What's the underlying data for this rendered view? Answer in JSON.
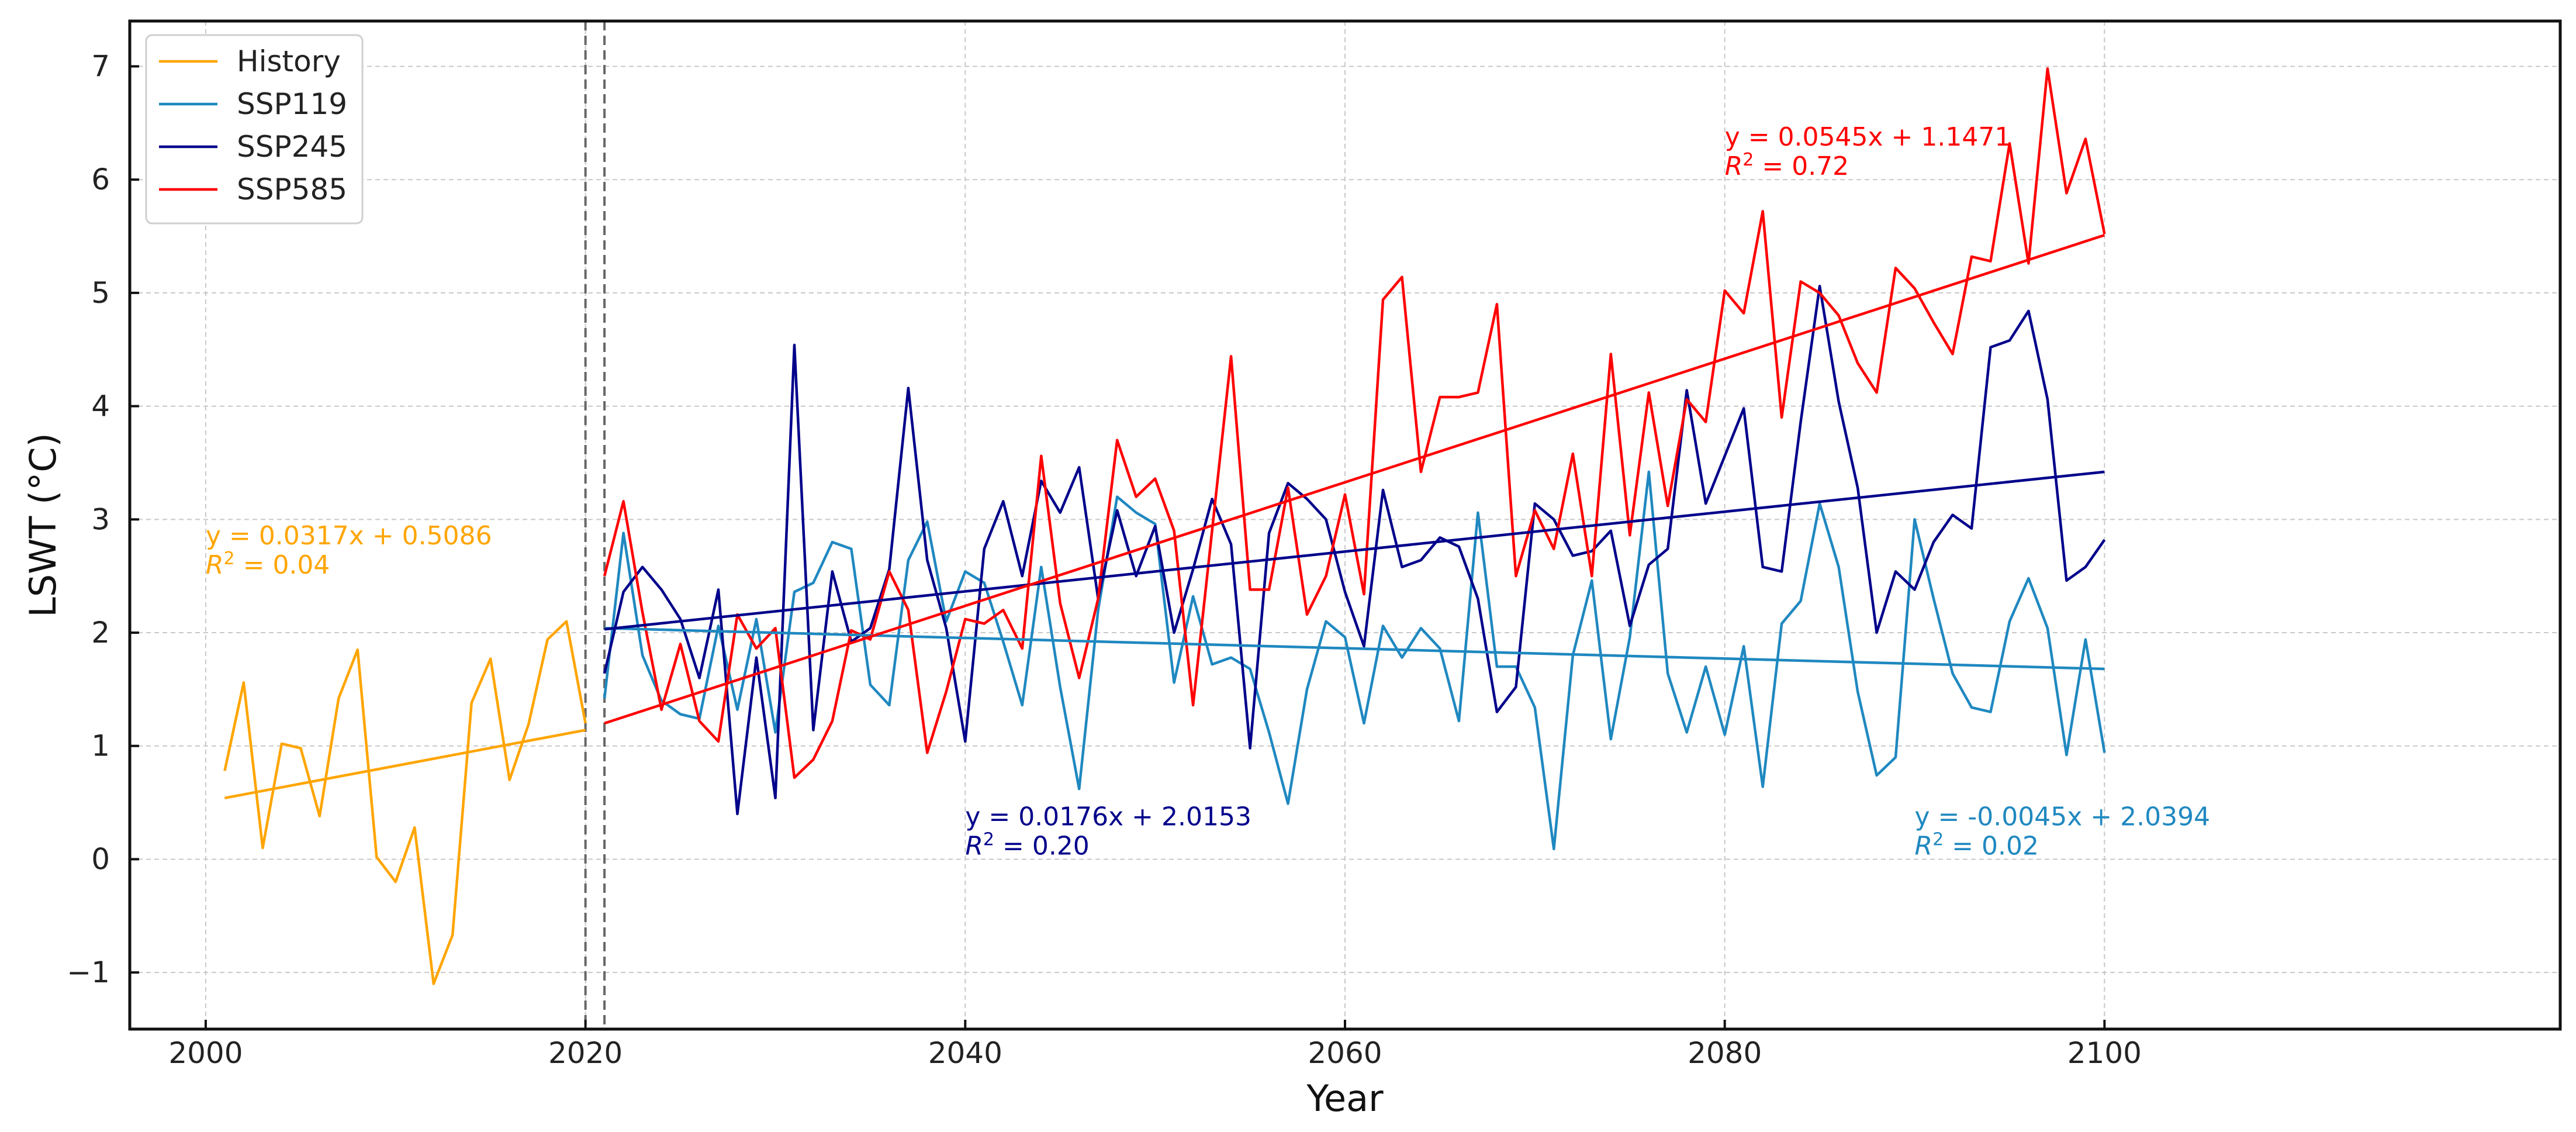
{
  "chart_data": {
    "type": "line",
    "xlabel": "Year",
    "ylabel": "LSWT (°C)",
    "xlim": [
      1996,
      2124
    ],
    "ylim": [
      -1.5,
      7.4
    ],
    "xticks": [
      2000,
      2020,
      2040,
      2060,
      2080,
      2100
    ],
    "xtick_labels": [
      "2000",
      "2020",
      "2040",
      "2060",
      "2080",
      "2100"
    ],
    "yticks": [
      -1,
      0,
      1,
      2,
      3,
      4,
      5,
      6,
      7
    ],
    "ytick_labels": [
      "−1",
      "0",
      "1",
      "2",
      "3",
      "4",
      "5",
      "6",
      "7"
    ],
    "grid": true,
    "legend_position": "top-left",
    "vlines": [
      2020,
      2021
    ],
    "series": [
      {
        "name": "History",
        "color": "#FFA500",
        "x": [
          2001,
          2002,
          2003,
          2004,
          2005,
          2006,
          2007,
          2008,
          2009,
          2010,
          2011,
          2012,
          2013,
          2014,
          2015,
          2016,
          2017,
          2018,
          2019,
          2020
        ],
        "values": [
          0.78,
          1.56,
          0.1,
          1.02,
          0.98,
          0.38,
          1.42,
          1.85,
          0.02,
          -0.2,
          0.28,
          -1.1,
          -0.67,
          1.38,
          1.77,
          0.7,
          1.19,
          1.94,
          2.1,
          1.2
        ],
        "trend": {
          "label": "y = 0.0317x + 0.5086",
          "r2": "= 0.04",
          "x0": 2001,
          "y0": 0.54,
          "x1": 2020,
          "y1": 1.14
        }
      },
      {
        "name": "SSP119",
        "color": "#1F88C0",
        "x": [
          2021,
          2022,
          2023,
          2024,
          2025,
          2026,
          2027,
          2028,
          2029,
          2030,
          2031,
          2032,
          2033,
          2034,
          2035,
          2036,
          2037,
          2038,
          2039,
          2040,
          2041,
          2042,
          2043,
          2044,
          2045,
          2046,
          2047,
          2048,
          2049,
          2050,
          2051,
          2052,
          2053,
          2054,
          2055,
          2056,
          2057,
          2058,
          2059,
          2060,
          2061,
          2062,
          2063,
          2064,
          2065,
          2066,
          2067,
          2068,
          2069,
          2070,
          2071,
          2072,
          2073,
          2074,
          2075,
          2076,
          2077,
          2078,
          2079,
          2080,
          2081,
          2082,
          2083,
          2084,
          2085,
          2086,
          2087,
          2088,
          2089,
          2090,
          2091,
          2092,
          2093,
          2094,
          2095,
          2096,
          2097,
          2098,
          2099,
          2100
        ],
        "values": [
          1.42,
          2.88,
          1.8,
          1.4,
          1.28,
          1.24,
          2.06,
          1.32,
          2.12,
          1.12,
          2.36,
          2.44,
          2.8,
          2.74,
          1.54,
          1.36,
          2.64,
          2.98,
          2.1,
          2.54,
          2.44,
          1.92,
          1.36,
          2.58,
          1.52,
          0.62,
          2.2,
          3.2,
          3.06,
          2.96,
          1.56,
          2.32,
          1.72,
          1.78,
          1.68,
          1.12,
          0.49,
          1.5,
          2.1,
          1.96,
          1.2,
          2.06,
          1.78,
          2.04,
          1.86,
          1.22,
          3.06,
          1.7,
          1.7,
          1.34,
          0.09,
          1.8,
          2.46,
          1.06,
          1.96,
          3.42,
          1.64,
          1.12,
          1.7,
          1.1,
          1.88,
          0.64,
          2.08,
          2.28,
          3.14,
          2.58,
          1.48,
          0.74,
          0.9,
          3.0,
          2.3,
          1.64,
          1.34,
          1.3,
          2.1,
          2.48,
          2.04,
          0.92,
          1.94,
          0.94
        ],
        "trend": {
          "label": "y = -0.0045x + 2.0394",
          "r2": "= 0.02",
          "x0": 2021,
          "y0": 2.04,
          "x1": 2100,
          "y1": 1.68
        }
      },
      {
        "name": "SSP245",
        "color": "#00008B",
        "x": [
          2021,
          2022,
          2023,
          2024,
          2025,
          2026,
          2027,
          2028,
          2029,
          2030,
          2031,
          2032,
          2033,
          2034,
          2035,
          2036,
          2037,
          2038,
          2039,
          2040,
          2041,
          2042,
          2043,
          2044,
          2045,
          2046,
          2047,
          2048,
          2049,
          2050,
          2051,
          2052,
          2053,
          2054,
          2055,
          2056,
          2057,
          2058,
          2059,
          2060,
          2061,
          2062,
          2063,
          2064,
          2065,
          2066,
          2067,
          2068,
          2069,
          2070,
          2071,
          2072,
          2073,
          2074,
          2075,
          2076,
          2077,
          2078,
          2079,
          2080,
          2081,
          2082,
          2083,
          2084,
          2085,
          2086,
          2087,
          2088,
          2089,
          2090,
          2091,
          2092,
          2093,
          2094,
          2095,
          2096,
          2097,
          2098,
          2099,
          2100
        ],
        "values": [
          1.64,
          2.36,
          2.58,
          2.38,
          2.12,
          1.6,
          2.38,
          0.4,
          1.78,
          0.54,
          4.54,
          1.14,
          2.54,
          1.92,
          2.04,
          2.56,
          4.16,
          2.64,
          2.04,
          1.04,
          2.74,
          3.16,
          2.5,
          3.34,
          3.06,
          3.46,
          2.3,
          3.08,
          2.5,
          2.94,
          2.0,
          2.56,
          3.18,
          2.78,
          0.98,
          2.88,
          3.32,
          3.18,
          3.0,
          2.36,
          1.88,
          3.26,
          2.58,
          2.64,
          2.84,
          2.76,
          2.3,
          1.3,
          1.52,
          3.14,
          3.0,
          2.68,
          2.72,
          2.9,
          2.06,
          2.6,
          2.74,
          4.14,
          3.14,
          3.56,
          3.98,
          2.58,
          2.54,
          3.86,
          5.06,
          4.04,
          3.28,
          2.0,
          2.54,
          2.38,
          2.8,
          3.04,
          2.92,
          4.52,
          4.58,
          4.84,
          4.06,
          2.46,
          2.58,
          2.82
        ],
        "trend": {
          "label": "y = 0.0176x + 2.0153",
          "r2": "= 0.20",
          "x0": 2021,
          "y0": 2.03,
          "x1": 2100,
          "y1": 3.42
        }
      },
      {
        "name": "SSP585",
        "color": "#FF0000",
        "x": [
          2021,
          2022,
          2023,
          2024,
          2025,
          2026,
          2027,
          2028,
          2029,
          2030,
          2031,
          2032,
          2033,
          2034,
          2035,
          2036,
          2037,
          2038,
          2039,
          2040,
          2041,
          2042,
          2043,
          2044,
          2045,
          2046,
          2047,
          2048,
          2049,
          2050,
          2051,
          2052,
          2053,
          2054,
          2055,
          2056,
          2057,
          2058,
          2059,
          2060,
          2061,
          2062,
          2063,
          2064,
          2065,
          2066,
          2067,
          2068,
          2069,
          2070,
          2071,
          2072,
          2073,
          2074,
          2075,
          2076,
          2077,
          2078,
          2079,
          2080,
          2081,
          2082,
          2083,
          2084,
          2085,
          2086,
          2087,
          2088,
          2089,
          2090,
          2091,
          2092,
          2093,
          2094,
          2095,
          2096,
          2097,
          2098,
          2099,
          2100
        ],
        "values": [
          2.5,
          3.16,
          2.18,
          1.32,
          1.9,
          1.22,
          1.04,
          2.16,
          1.86,
          2.04,
          0.72,
          0.88,
          1.22,
          2.02,
          1.94,
          2.54,
          2.2,
          0.94,
          1.48,
          2.12,
          2.08,
          2.2,
          1.86,
          3.56,
          2.26,
          1.6,
          2.3,
          3.7,
          3.2,
          3.36,
          2.9,
          1.36,
          2.9,
          4.44,
          2.38,
          2.38,
          3.28,
          2.16,
          2.5,
          3.22,
          2.34,
          4.94,
          5.14,
          3.42,
          4.08,
          4.08,
          4.12,
          4.9,
          2.5,
          3.08,
          2.74,
          3.58,
          2.5,
          4.46,
          2.86,
          4.12,
          3.12,
          4.06,
          3.86,
          5.02,
          4.82,
          5.72,
          3.9,
          5.1,
          5.0,
          4.8,
          4.38,
          4.12,
          5.22,
          5.04,
          4.74,
          4.46,
          5.32,
          5.28,
          6.32,
          5.26,
          6.98,
          5.88,
          6.36,
          5.52
        ],
        "trend": {
          "label": "y = 0.0545x + 1.1471",
          "r2": "= 0.72",
          "x0": 2021,
          "y0": 1.2,
          "x1": 2100,
          "y1": 5.51
        }
      }
    ],
    "annotations": [
      {
        "series": "History",
        "x": 2000,
        "y": 2.78
      },
      {
        "series": "SSP245",
        "x": 2040,
        "y": 0.3
      },
      {
        "series": "SSP119",
        "x": 2090,
        "y": 0.3
      },
      {
        "series": "SSP585",
        "x": 2080,
        "y": 6.3
      }
    ]
  }
}
